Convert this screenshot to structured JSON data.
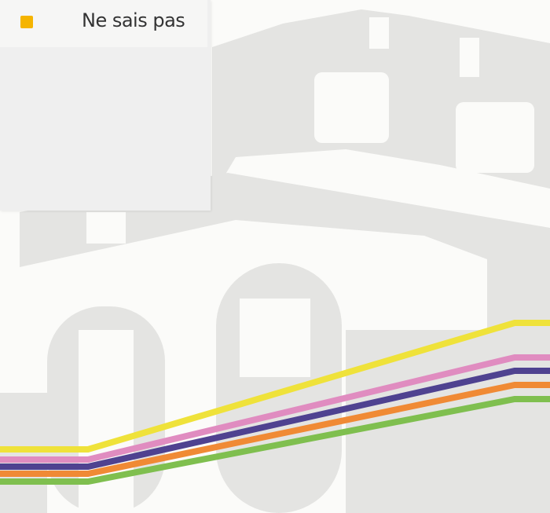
{
  "legend": {
    "items": [
      {
        "label": "Ne sais pas"
      }
    ]
  }
}
